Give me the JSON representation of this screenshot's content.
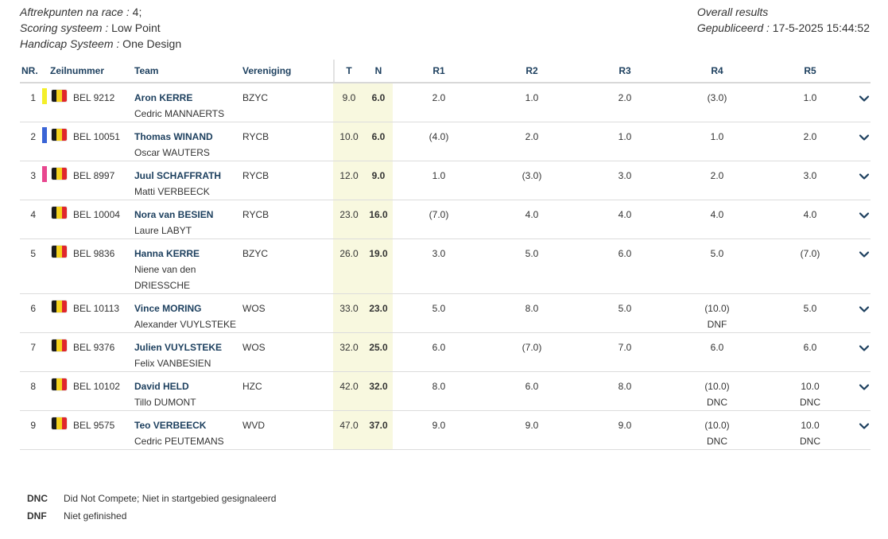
{
  "meta": {
    "aftrek_label": "Aftrekpunten na race :",
    "aftrek_value": " 4;",
    "scoring_label": "Scoring systeem :",
    "scoring_value": " Low Point",
    "handicap_label": "Handicap Systeem :",
    "handicap_value": " One Design",
    "overall": "Overall results",
    "published_label": "Gepubliceerd :",
    "published_value": " 17-5-2025 15:44:52"
  },
  "headers": {
    "nr": "NR.",
    "sail": "Zeilnummer",
    "team": "Team",
    "club": "Vereniging",
    "t": "T",
    "n": "N",
    "r1": "R1",
    "r2": "R2",
    "r3": "R3",
    "r4": "R4",
    "r5": "R5"
  },
  "colors": {
    "stripe_yellow": "#f4ef2a",
    "stripe_blue": "#3a64d6",
    "stripe_pink": "#e8478f",
    "flag_black": "#1a1a1a",
    "flag_yellow": "#f5d21e",
    "flag_red": "#e0262c",
    "highlight": "#f8f8df"
  },
  "rows": [
    {
      "nr": "1",
      "stripe": "yellow",
      "sail": "BEL 9212",
      "skipper": "Aron KERRE",
      "crew": "Cedric MANNAERTS",
      "club": "BZYC",
      "t": "9.0",
      "n": "6.0",
      "r1": "2.0",
      "r2": "1.0",
      "r3": "2.0",
      "r4": "(3.0)",
      "r5": "1.0",
      "r1b": "",
      "r2b": "",
      "r3b": "",
      "r4b": "",
      "r5b": ""
    },
    {
      "nr": "2",
      "stripe": "blue",
      "sail": "BEL 10051",
      "skipper": "Thomas WINAND",
      "crew": "Oscar WAUTERS",
      "club": "RYCB",
      "t": "10.0",
      "n": "6.0",
      "r1": "(4.0)",
      "r2": "2.0",
      "r3": "1.0",
      "r4": "1.0",
      "r5": "2.0",
      "r1b": "",
      "r2b": "",
      "r3b": "",
      "r4b": "",
      "r5b": ""
    },
    {
      "nr": "3",
      "stripe": "pink",
      "sail": "BEL 8997",
      "skipper": "Juul SCHAFFRATH",
      "crew": "Matti VERBEECK",
      "club": "RYCB",
      "t": "12.0",
      "n": "9.0",
      "r1": "1.0",
      "r2": "(3.0)",
      "r3": "3.0",
      "r4": "2.0",
      "r5": "3.0",
      "r1b": "",
      "r2b": "",
      "r3b": "",
      "r4b": "",
      "r5b": ""
    },
    {
      "nr": "4",
      "stripe": "",
      "sail": "BEL 10004",
      "skipper": "Nora van BESIEN",
      "crew": "Laure LABYT",
      "club": "RYCB",
      "t": "23.0",
      "n": "16.0",
      "r1": "(7.0)",
      "r2": "4.0",
      "r3": "4.0",
      "r4": "4.0",
      "r5": "4.0",
      "r1b": "",
      "r2b": "",
      "r3b": "",
      "r4b": "",
      "r5b": ""
    },
    {
      "nr": "5",
      "stripe": "",
      "sail": "BEL 9836",
      "skipper": "Hanna KERRE",
      "crew": "Niene van den",
      "crew2": "DRIESSCHE",
      "club": "BZYC",
      "t": "26.0",
      "n": "19.0",
      "r1": "3.0",
      "r2": "5.0",
      "r3": "6.0",
      "r4": "5.0",
      "r5": "(7.0)",
      "r1b": "",
      "r2b": "",
      "r3b": "",
      "r4b": "",
      "r5b": ""
    },
    {
      "nr": "6",
      "stripe": "",
      "sail": "BEL 10113",
      "skipper": "Vince MORING",
      "crew": "Alexander VUYLSTEKE",
      "club": "WOS",
      "t": "33.0",
      "n": "23.0",
      "r1": "5.0",
      "r2": "8.0",
      "r3": "5.0",
      "r4": "(10.0)",
      "r5": "5.0",
      "r1b": "",
      "r2b": "",
      "r3b": "",
      "r4b": "DNF",
      "r5b": ""
    },
    {
      "nr": "7",
      "stripe": "",
      "sail": "BEL 9376",
      "skipper": "Julien VUYLSTEKE",
      "crew": "Felix VANBESIEN",
      "club": "WOS",
      "t": "32.0",
      "n": "25.0",
      "r1": "6.0",
      "r2": "(7.0)",
      "r3": "7.0",
      "r4": "6.0",
      "r5": "6.0",
      "r1b": "",
      "r2b": "",
      "r3b": "",
      "r4b": "",
      "r5b": ""
    },
    {
      "nr": "8",
      "stripe": "",
      "sail": "BEL 10102",
      "skipper": "David HELD",
      "crew": "Tillo DUMONT",
      "club": "HZC",
      "t": "42.0",
      "n": "32.0",
      "r1": "8.0",
      "r2": "6.0",
      "r3": "8.0",
      "r4": "(10.0)",
      "r5": "10.0",
      "r1b": "",
      "r2b": "",
      "r3b": "",
      "r4b": "DNC",
      "r5b": "DNC"
    },
    {
      "nr": "9",
      "stripe": "",
      "sail": "BEL 9575",
      "skipper": "Teo VERBEECK",
      "crew": "Cedric PEUTEMANS",
      "club": "WVD",
      "t": "47.0",
      "n": "37.0",
      "r1": "9.0",
      "r2": "9.0",
      "r3": "9.0",
      "r4": "(10.0)",
      "r5": "10.0",
      "r1b": "",
      "r2b": "",
      "r3b": "",
      "r4b": "DNC",
      "r5b": "DNC"
    }
  ],
  "legend": [
    {
      "code": "DNC",
      "text": "Did Not Compete; Niet in startgebied gesignaleerd"
    },
    {
      "code": "DNF",
      "text": "Niet gefinished"
    }
  ]
}
